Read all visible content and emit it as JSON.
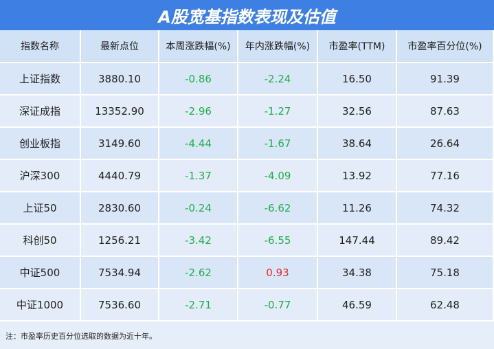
{
  "title": "A股宽基指数表现及估值",
  "table": {
    "header": [
      "指数名称",
      "最新点位",
      "本周涨跌幅(%)",
      "年内涨跌幅(%)",
      "市盈率(TTM)",
      "市盈率百分位(%)"
    ],
    "rows": [
      [
        "上证指数",
        "3880.10",
        "-0.86",
        "-2.24",
        "16.50",
        "91.39"
      ],
      [
        "深证成指",
        "13352.90",
        "-2.96",
        "-1.27",
        "32.56",
        "87.63"
      ],
      [
        "创业板指",
        "3149.60",
        "-4.44",
        "-1.67",
        "38.64",
        "26.64"
      ],
      [
        "沪深300",
        "4440.79",
        "-1.37",
        "-4.09",
        "13.92",
        "77.16"
      ],
      [
        "上证50",
        "2830.60",
        "-0.24",
        "-6.62",
        "11.26",
        "74.32"
      ],
      [
        "科创50",
        "1256.21",
        "-3.42",
        "-6.55",
        "147.44",
        "89.42"
      ],
      [
        "中证500",
        "7534.94",
        "-2.62",
        "0.93",
        "34.38",
        "75.18"
      ],
      [
        "中证1000",
        "7536.60",
        "-2.71",
        "-0.77",
        "46.59",
        "62.48"
      ]
    ],
    "colors": {
      "negative": "#1fae4b",
      "positive": "#e8262b"
    }
  },
  "note": "注：市盈率历史百分位选取的数据为近十年。"
}
